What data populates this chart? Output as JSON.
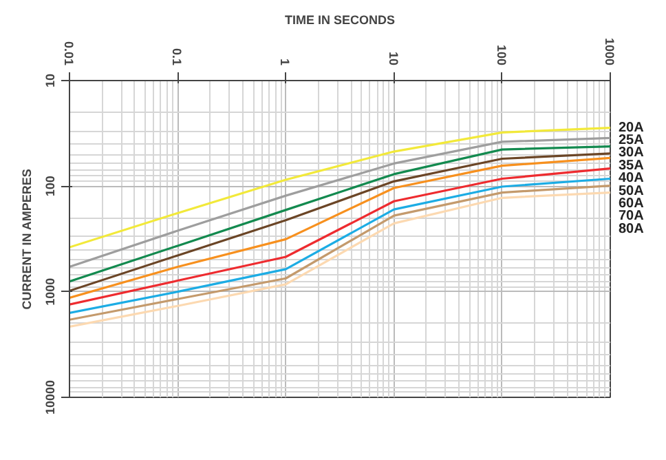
{
  "chart_data": {
    "type": "line",
    "xlabel": "TIME IN SECONDS",
    "ylabel": "CURRENT IN AMPERES",
    "log": "xy",
    "grid": true,
    "marker": "none",
    "line_style": "solid",
    "x": [
      0.01,
      0.1,
      1,
      10,
      100,
      1000
    ],
    "xlim": [
      0.01,
      1000
    ],
    "xticks": [
      0.01,
      0.1,
      1,
      10,
      100,
      1000
    ],
    "ylim": [
      10000,
      10
    ],
    "yticks": [
      10,
      100,
      1000,
      10000
    ],
    "series": [
      {
        "name": "20A",
        "color": "#f2e93a",
        "values": [
          379,
          180,
          87,
          47,
          31,
          28
        ]
      },
      {
        "name": "25A",
        "color": "#9e9e9e",
        "values": [
          580,
          264,
          123,
          61,
          38,
          35
        ]
      },
      {
        "name": "30A",
        "color": "#138a4f",
        "values": [
          800,
          367,
          168,
          77,
          45,
          42
        ]
      },
      {
        "name": "35A",
        "color": "#6b4526",
        "values": [
          980,
          453,
          210,
          90,
          55,
          49
        ]
      },
      {
        "name": "40A",
        "color": "#f7901e",
        "values": [
          1140,
          581,
          318,
          104,
          64,
          54
        ]
      },
      {
        "name": "50A",
        "color": "#ee2b2f",
        "values": [
          1320,
          785,
          467,
          139,
          85,
          68
        ]
      },
      {
        "name": "60A",
        "color": "#1cace4",
        "values": [
          1585,
          1000,
          611,
          166,
          101,
          85
        ]
      },
      {
        "name": "70A",
        "color": "#c49a6c",
        "values": [
          1840,
          1172,
          747,
          190,
          115,
          99
        ]
      },
      {
        "name": "80A",
        "color": "#fcd9b1",
        "values": [
          2140,
          1362,
          850,
          225,
          129,
          115
        ]
      }
    ]
  }
}
